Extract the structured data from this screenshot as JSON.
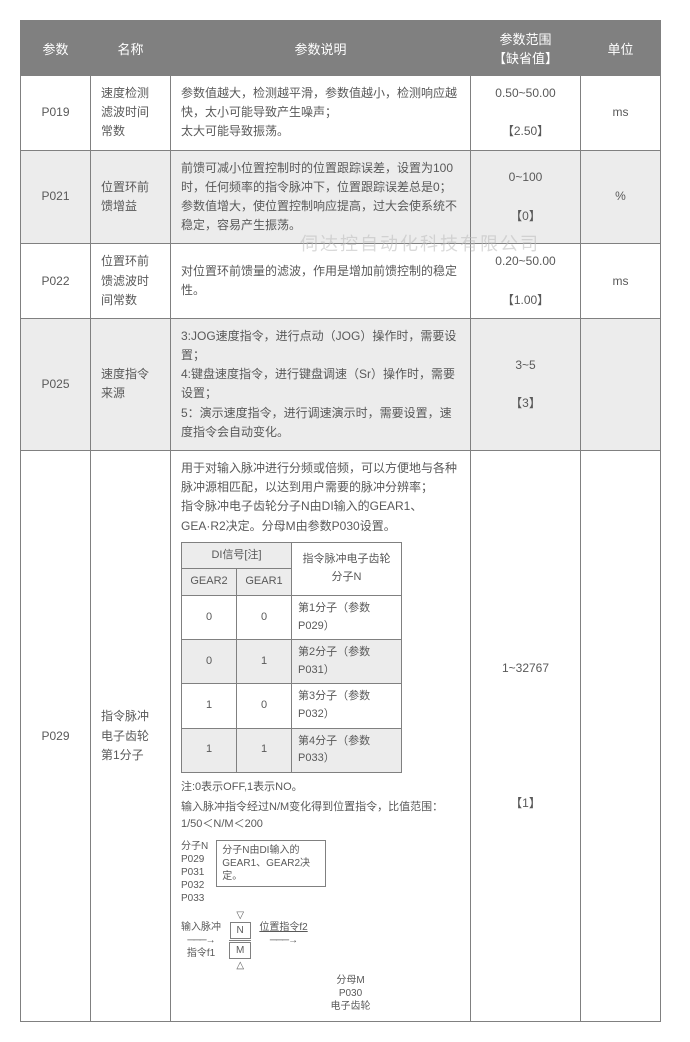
{
  "watermark": "伺达控自动化科技有限公司",
  "headers": {
    "param": "参数",
    "name": "名称",
    "desc": "参数说明",
    "range": "参数范围",
    "default_label": "【缺省值】",
    "unit": "单位"
  },
  "rows": [
    {
      "param": "P019",
      "name": "速度检测滤波时间常数",
      "desc": "参数值越大，检测越平滑，参数值越小，检测响应越快，太小可能导致产生噪声；\n太大可能导致振荡。",
      "range": "0.50~50.00",
      "default": "【2.50】",
      "unit": "ms",
      "alt": false
    },
    {
      "param": "P021",
      "name": "位置环前馈增益",
      "desc": "前馈可减小位置控制时的位置跟踪误差，设置为100时，任何频率的指令脉冲下，位置跟踪误差总是0；\n参数值增大，使位置控制响应提高，过大会使系统不稳定，容易产生振荡。",
      "range": "0~100",
      "default": "【0】",
      "unit": "%",
      "alt": true
    },
    {
      "param": "P022",
      "name": "位置环前馈滤波时间常数",
      "desc": "对位置环前馈量的滤波，作用是增加前馈控制的稳定性。",
      "range": "0.20~50.00",
      "default": "【1.00】",
      "unit": "ms",
      "alt": false
    },
    {
      "param": "P025",
      "name": "速度指令来源",
      "desc": "3:JOG速度指令，进行点动（JOG）操作时，需要设置；\n4:键盘速度指令，进行键盘调速（Sr）操作时，需要设置；\n5：演示速度指令，进行调速演示时，需要设置，速度指令会自动变化。",
      "range": "3~5",
      "default": "【3】",
      "unit": "",
      "alt": true
    }
  ],
  "p029": {
    "param": "P029",
    "name": "指令脉冲电子齿轮第1分子",
    "intro": "用于对输入脉冲进行分频或倍频，可以方便地与各种脉冲源相匹配，以达到用户需要的脉冲分辨率；\n指令脉冲电子齿轮分子N由DI输入的GEAR1、GEA·R2决定。分母M由参数P030设置。",
    "range": "1~32767",
    "default": "【1】",
    "unit": "",
    "inner": {
      "h_di": "DI信号[注]",
      "h_n": "指令脉冲电子齿轮分子N",
      "c_g2": "GEAR2",
      "c_g1": "GEAR1",
      "rows": [
        {
          "g2": "0",
          "g1": "0",
          "n": "第1分子（参数P029）",
          "alt": false
        },
        {
          "g2": "0",
          "g1": "1",
          "n": "第2分子（参数P031）",
          "alt": true
        },
        {
          "g2": "1",
          "g1": "0",
          "n": "第3分子（参数P032）",
          "alt": false
        },
        {
          "g2": "1",
          "g1": "1",
          "n": "第4分子（参数P033）",
          "alt": true
        }
      ]
    },
    "note1": "注:0表示OFF,1表示NO。",
    "note2": "输入脉冲指令经过N/M变化得到位置指令，比值范围：1/50＜N/M＜200",
    "diag": {
      "left_lbl": "分子N\nP029\nP031\nP032\nP033",
      "box_text": "分子N由DI输入的GEAR1、GEAR2决定。",
      "in_lbl_top": "输入脉冲",
      "in_lbl_bot": "指令f1",
      "n": "N",
      "m": "M",
      "out_lbl": "位置指令f2",
      "bottom": "分母M\nP030\n电子齿轮"
    }
  }
}
